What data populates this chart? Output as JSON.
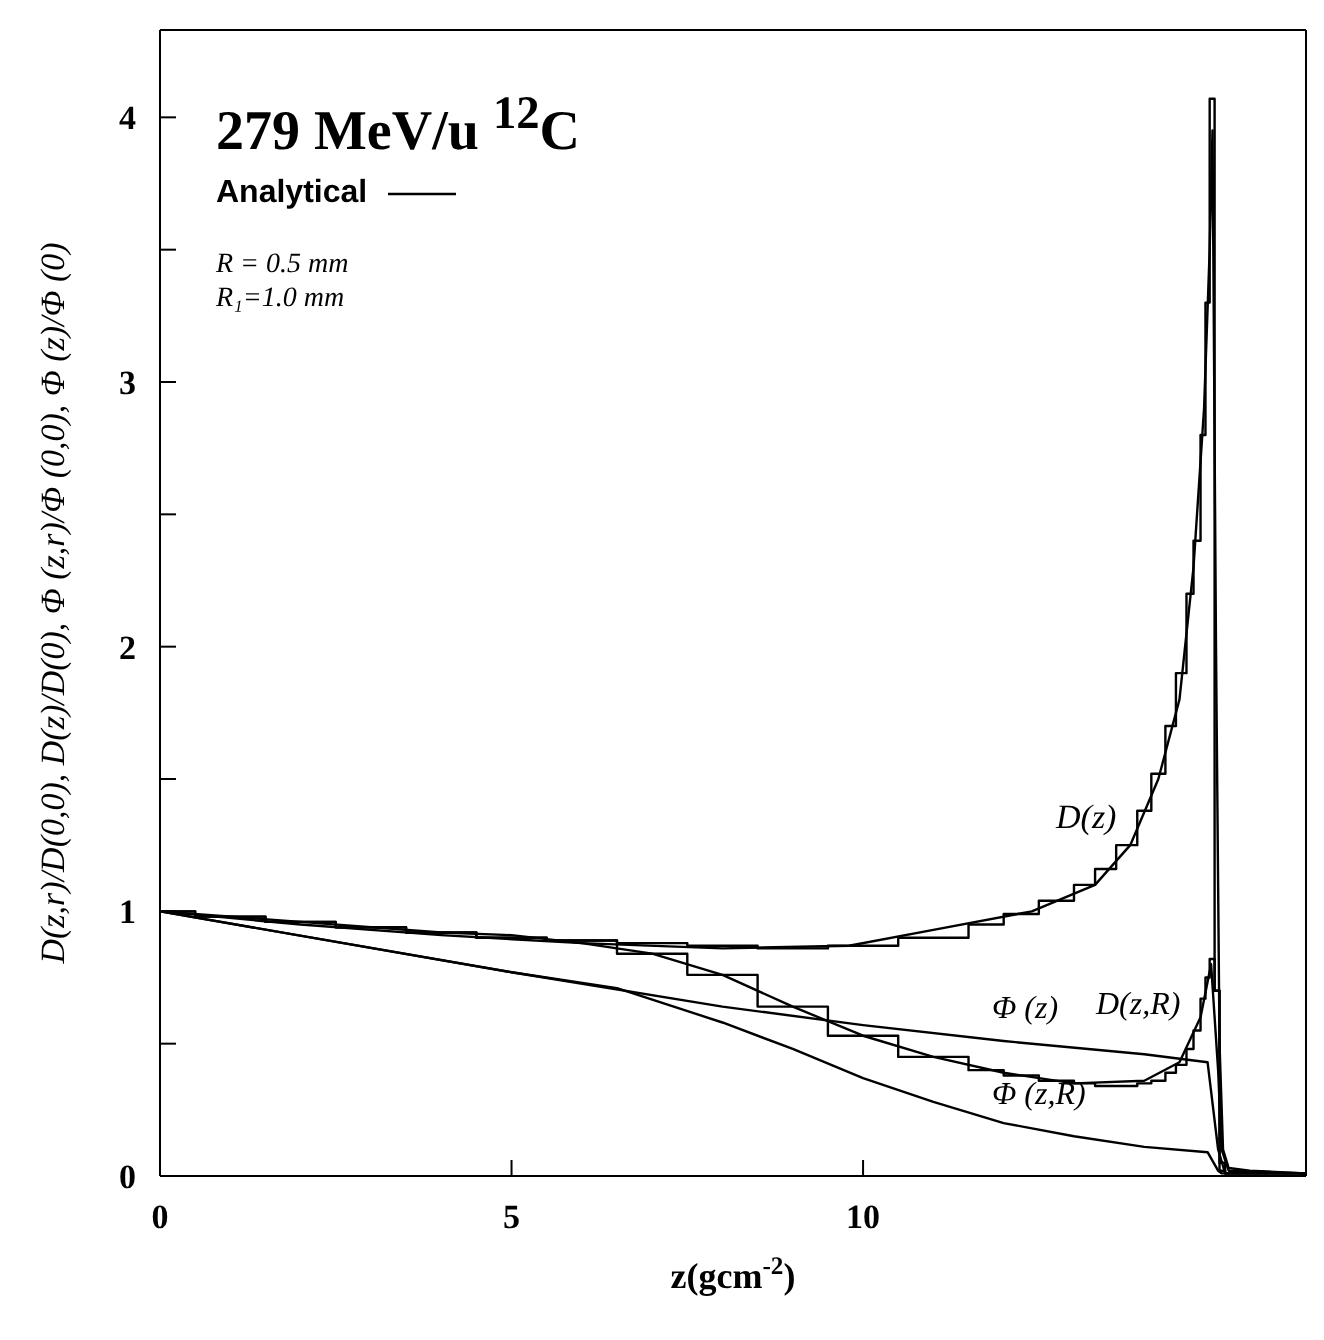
{
  "chart_data": {
    "type": "line",
    "title": "279 MeV/u $^{12}$C",
    "xlabel": "z(gcm$^{-2}$)",
    "ylabel": "D(z,r)/D(0,0), D(z)/D(0), Φ (z,r)/Φ (0,0), Φ (z)/Φ (0)",
    "xlim": [
      0,
      16.3
    ],
    "ylim": [
      0,
      4.33
    ],
    "xticks": [
      0,
      5,
      10
    ],
    "yticks": [
      0,
      {
        "value": 0.5,
        "label": null
      },
      1,
      {
        "value": 1.5,
        "label": null
      },
      2,
      {
        "value": 2.5,
        "label": null
      },
      3,
      {
        "value": 3.5,
        "label": null
      },
      4
    ],
    "legend": "top left",
    "annotations": [
      "R = 0.5 mm",
      "R₁=1.0 mm",
      "D(z)",
      "Φ (z)",
      "D(z,R)",
      "Φ (z,R)"
    ],
    "series": [
      {
        "name": "Analytical",
        "color": "#000000",
        "x": [
          0,
          2,
          4,
          6,
          8,
          9.8,
          11,
          12.4,
          13.3,
          13.8,
          14.2,
          14.5,
          14.7,
          14.85,
          14.93,
          14.97,
          15.02,
          15.07,
          15.12,
          15.2,
          15.5,
          16.3
        ],
        "values": [
          1,
          0.95,
          0.91,
          0.88,
          0.86,
          0.87,
          0.93,
          1.0,
          1.1,
          1.25,
          1.5,
          1.8,
          2.3,
          2.9,
          3.5,
          3.95,
          2.0,
          0.5,
          0.1,
          0.03,
          0.02,
          0.01
        ]
      },
      {
        "color": "#000000",
        "x": [
          0,
          5,
          8,
          10,
          12,
          14,
          14.9,
          15.05,
          15.15,
          16.3
        ],
        "values": [
          1,
          0.77,
          0.64,
          0.57,
          0.51,
          0.46,
          0.43,
          0.1,
          0.01,
          0.01
        ]
      },
      {
        "color": "#000000",
        "x": [
          0,
          2,
          4,
          5,
          6,
          7,
          8,
          9,
          10,
          11,
          12,
          13,
          14,
          14.5,
          14.8,
          14.95,
          15.05,
          15.1,
          15.2,
          16.3
        ],
        "values": [
          1,
          0.96,
          0.92,
          0.91,
          0.88,
          0.84,
          0.76,
          0.64,
          0.53,
          0.45,
          0.39,
          0.35,
          0.36,
          0.43,
          0.6,
          0.8,
          0.4,
          0.1,
          0.02,
          0.01
        ]
      },
      {
        "color": "#000000",
        "x": [
          0,
          5,
          6.5,
          8,
          9,
          10,
          11,
          12,
          13,
          14,
          14.9,
          15.05,
          15.1,
          16.3
        ],
        "values": [
          1,
          0.77,
          0.71,
          0.58,
          0.48,
          0.37,
          0.28,
          0.2,
          0.15,
          0.11,
          0.09,
          0.02,
          0.01,
          0.01
        ]
      },
      {
        "type": "step",
        "color": "#000000",
        "x": [
          0,
          0.5,
          1.5,
          2.5,
          3.5,
          4.5,
          5.5,
          6.5,
          7.5,
          8.5,
          9.5,
          10.5,
          11.5,
          12,
          12.5,
          13,
          13.3,
          13.6,
          13.9,
          14.1,
          14.3,
          14.45,
          14.6,
          14.7,
          14.8,
          14.87,
          14.93,
          15.0,
          15.07,
          15.15,
          16.3
        ],
        "values": [
          1,
          0.98,
          0.96,
          0.94,
          0.92,
          0.9,
          0.89,
          0.88,
          0.87,
          0.86,
          0.87,
          0.9,
          0.95,
          0.99,
          1.04,
          1.1,
          1.16,
          1.25,
          1.38,
          1.52,
          1.7,
          1.9,
          2.2,
          2.4,
          2.8,
          3.3,
          4.07,
          0.7,
          0.02,
          0.01,
          0.01
        ]
      },
      {
        "type": "step",
        "color": "#000000",
        "x": [
          0,
          0.5,
          1.5,
          2.5,
          3.5,
          4.5,
          5.5,
          6.5,
          7.5,
          8.5,
          9.5,
          10.5,
          11.5,
          12,
          12.5,
          13,
          13.3,
          13.6,
          13.9,
          14.1,
          14.3,
          14.45,
          14.6,
          14.7,
          14.8,
          14.87,
          14.93,
          15.0,
          15.07,
          15.15,
          16.3
        ],
        "values": [
          1,
          0.98,
          0.96,
          0.94,
          0.92,
          0.9,
          0.89,
          0.84,
          0.76,
          0.64,
          0.53,
          0.45,
          0.4,
          0.38,
          0.36,
          0.35,
          0.34,
          0.34,
          0.35,
          0.36,
          0.39,
          0.42,
          0.48,
          0.55,
          0.67,
          0.75,
          0.82,
          0.7,
          0.05,
          0.01,
          0.01
        ]
      }
    ]
  }
}
